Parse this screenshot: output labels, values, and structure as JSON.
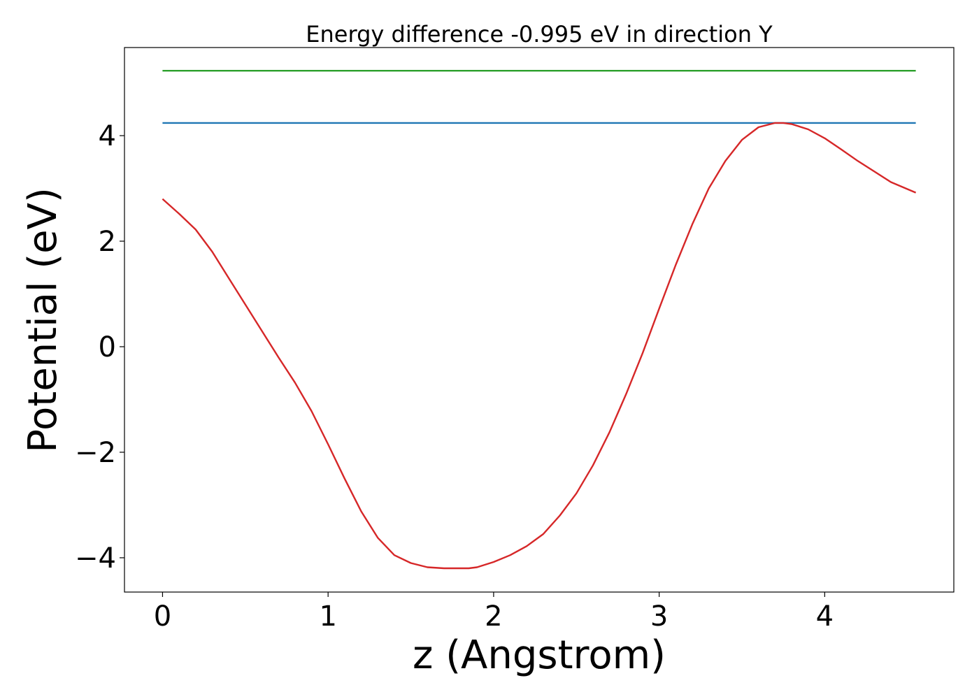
{
  "chart_data": {
    "type": "line",
    "title": "Energy difference -0.995 eV in direction Y",
    "xlabel": "z (Angstrom)",
    "ylabel": "Potential (eV)",
    "xlim": [
      -0.23,
      4.78
    ],
    "ylim": [
      -4.65,
      5.67
    ],
    "xticks": [
      0,
      1,
      2,
      3,
      4
    ],
    "xtick_labels": [
      "0",
      "1",
      "2",
      "3",
      "4"
    ],
    "yticks": [
      -4,
      -2,
      0,
      2,
      4
    ],
    "ytick_labels": [
      "−4",
      "−2",
      "0",
      "2",
      "4"
    ],
    "grid": false,
    "legend": "none",
    "series": [
      {
        "color": "#2ca02c",
        "x": [
          0,
          4.55
        ],
        "y": [
          5.23,
          5.23
        ]
      },
      {
        "color": "#1f77b4",
        "x": [
          0,
          4.55
        ],
        "y": [
          4.24,
          4.24
        ]
      },
      {
        "color": "#d62728",
        "x": [
          0,
          0.1,
          0.2,
          0.3,
          0.4,
          0.5,
          0.6,
          0.7,
          0.8,
          0.9,
          1.0,
          1.1,
          1.2,
          1.3,
          1.4,
          1.5,
          1.6,
          1.7,
          1.8,
          1.85,
          1.9,
          2.0,
          2.1,
          2.2,
          2.3,
          2.4,
          2.5,
          2.6,
          2.7,
          2.8,
          2.9,
          3.0,
          3.1,
          3.2,
          3.3,
          3.4,
          3.5,
          3.6,
          3.7,
          3.75,
          3.8,
          3.9,
          4.0,
          4.1,
          4.2,
          4.3,
          4.4,
          4.55
        ],
        "y": [
          2.8,
          2.52,
          2.22,
          1.8,
          1.3,
          0.8,
          0.3,
          -0.2,
          -0.68,
          -1.22,
          -1.85,
          -2.5,
          -3.12,
          -3.62,
          -3.95,
          -4.1,
          -4.18,
          -4.2,
          -4.2,
          -4.2,
          -4.18,
          -4.08,
          -3.95,
          -3.78,
          -3.55,
          -3.2,
          -2.78,
          -2.25,
          -1.62,
          -0.9,
          -0.12,
          0.72,
          1.55,
          2.32,
          3.0,
          3.52,
          3.92,
          4.16,
          4.24,
          4.24,
          4.22,
          4.12,
          3.95,
          3.74,
          3.52,
          3.32,
          3.12,
          2.92
        ]
      }
    ]
  }
}
